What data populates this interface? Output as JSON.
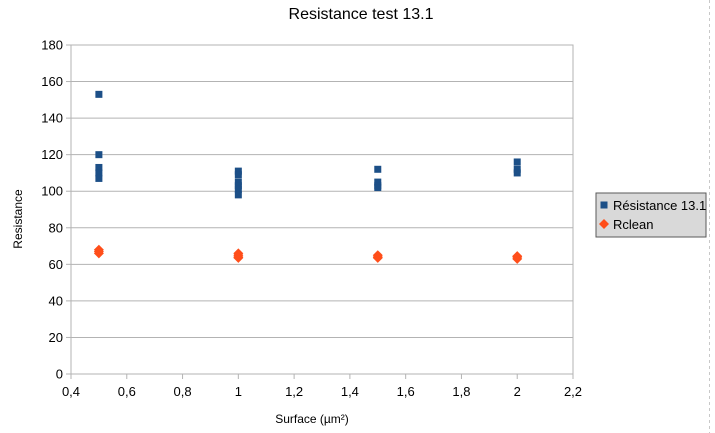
{
  "chart_data": {
    "type": "scatter",
    "title": "Resistance test 13.1",
    "xlabel": "Surface (µm²)",
    "ylabel": "Resistance",
    "xlim": [
      0.4,
      2.2
    ],
    "ylim": [
      0,
      180
    ],
    "x_ticks": [
      "0,4",
      "0,6",
      "0,8",
      "1",
      "1,2",
      "1,4",
      "1,6",
      "1,8",
      "2",
      "2,2"
    ],
    "y_ticks": [
      "0",
      "20",
      "40",
      "60",
      "80",
      "100",
      "120",
      "140",
      "160",
      "180"
    ],
    "grid": "horizontal",
    "legend_position": "right",
    "series": [
      {
        "name": "Résistance 13.1",
        "marker": "square",
        "color": "#1c4f87",
        "points": [
          [
            0.5,
            153
          ],
          [
            0.5,
            120
          ],
          [
            0.5,
            113
          ],
          [
            0.5,
            110
          ],
          [
            0.5,
            107
          ],
          [
            1,
            111
          ],
          [
            1,
            109
          ],
          [
            1,
            105
          ],
          [
            1,
            103
          ],
          [
            1,
            101
          ],
          [
            1,
            98
          ],
          [
            1.5,
            112
          ],
          [
            1.5,
            105
          ],
          [
            1.5,
            103
          ],
          [
            1.5,
            102
          ],
          [
            2,
            116
          ],
          [
            2,
            112
          ],
          [
            2,
            110
          ]
        ]
      },
      {
        "name": "Rclean",
        "marker": "diamond",
        "color": "#ff4e1a",
        "points": [
          [
            0.5,
            68
          ],
          [
            0.5,
            67
          ],
          [
            0.5,
            66
          ],
          [
            1,
            66
          ],
          [
            1,
            65
          ],
          [
            1,
            64
          ],
          [
            1,
            63.5
          ],
          [
            1.5,
            65
          ],
          [
            1.5,
            64
          ],
          [
            1.5,
            63.5
          ],
          [
            2,
            64.5
          ],
          [
            2,
            64
          ],
          [
            2,
            63
          ]
        ]
      }
    ]
  }
}
